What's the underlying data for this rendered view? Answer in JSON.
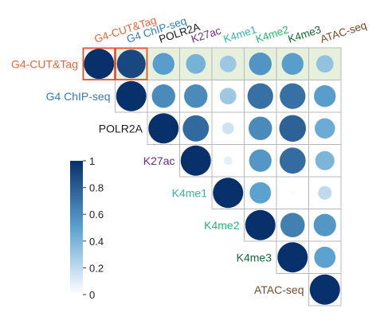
{
  "chart_data": {
    "type": "heatmap",
    "subtype": "upper-triangle correlation circle plot",
    "labels": [
      "G4-CUT&Tag",
      "G4 ChIP-seq",
      "POLR2A",
      "K27ac",
      "K4me1",
      "K4me2",
      "K4me3",
      "ATAC-seq"
    ],
    "label_colors": [
      "#e8643a",
      "#2f7ebd",
      "#1a1a1a",
      "#6a2c91",
      "#35b6a0",
      "#27b573",
      "#17673a",
      "#7a4a2a"
    ],
    "matrix": [
      [
        1.0,
        0.9,
        0.52,
        0.42,
        0.3,
        0.56,
        0.52,
        0.33
      ],
      [
        null,
        1.0,
        0.6,
        0.6,
        0.3,
        0.72,
        0.72,
        0.52
      ],
      [
        null,
        null,
        1.0,
        0.75,
        0.15,
        0.6,
        0.78,
        0.45
      ],
      [
        null,
        null,
        null,
        1.0,
        0.08,
        0.55,
        0.74,
        0.4
      ],
      [
        null,
        null,
        null,
        null,
        1.0,
        0.5,
        0.02,
        0.2
      ],
      [
        null,
        null,
        null,
        null,
        null,
        1.0,
        0.65,
        0.55
      ],
      [
        null,
        null,
        null,
        null,
        null,
        null,
        1.0,
        0.5
      ],
      [
        null,
        null,
        null,
        null,
        null,
        null,
        null,
        1.0
      ]
    ],
    "highlighted_cells": [
      [
        0,
        0
      ],
      [
        0,
        1
      ]
    ],
    "shaded_row": 0,
    "colorbar": {
      "ticks": [
        "1",
        "0.8",
        "0.6",
        "0.4",
        "0.2",
        "0"
      ],
      "tick_values": [
        1,
        0.8,
        0.6,
        0.4,
        0.2,
        0
      ],
      "range": [
        0,
        1
      ]
    },
    "colors": {
      "low": "#ffffff",
      "mid": "#5ca2d0",
      "high": "#08306b",
      "highlight_border": "#e8532f",
      "shaded_row_fill": "#e6f0dc",
      "grid": "#b8b8b8"
    }
  }
}
